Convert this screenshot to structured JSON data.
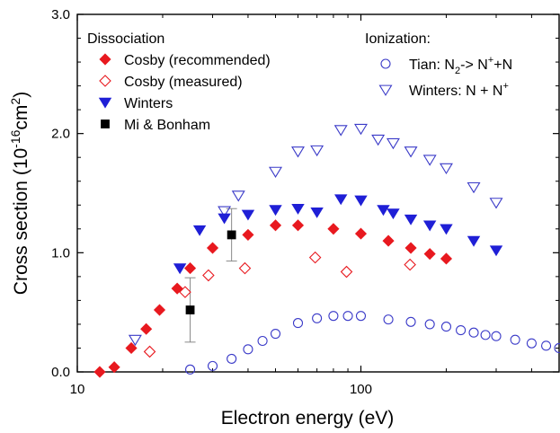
{
  "colors": {
    "filled_red": "#e8191f",
    "hollow_red": "#e8191f",
    "filled_blue": "#1f1fd6",
    "hollow_blue": "#3a3ac8",
    "black": "#000000",
    "grey": "#888888"
  },
  "chart_data": {
    "type": "scatter",
    "xscale": "log",
    "xlim": [
      10,
      500
    ],
    "ylim": [
      0.0,
      3.0
    ],
    "x_ticks": [
      10,
      100
    ],
    "x_tick_labels": [
      "10",
      "100"
    ],
    "y_ticks": [
      0.0,
      1.0,
      2.0,
      3.0
    ],
    "y_tick_labels": [
      "0.0",
      "1.0",
      "2.0",
      "3.0"
    ],
    "xlabel": "Electron energy (eV)",
    "ylabel": {
      "base": "Cross section (10",
      "sup1": "-16",
      "mid": "cm",
      "sup2": "2",
      "end": ")"
    },
    "legend_dissociation_title": "Dissociation",
    "legend_ionization_title": "Ionization:",
    "series": [
      {
        "name": "Cosby (recommended)",
        "group": "dissociation",
        "marker": "diamond",
        "filled": true,
        "color": "#e8191f",
        "x": [
          12,
          13.5,
          15.5,
          17.5,
          19.5,
          22.5,
          25,
          30,
          40,
          50,
          60,
          80,
          100,
          125,
          150,
          175,
          200
        ],
        "y": [
          0.0,
          0.04,
          0.2,
          0.36,
          0.52,
          0.7,
          0.87,
          1.04,
          1.15,
          1.23,
          1.23,
          1.2,
          1.16,
          1.1,
          1.04,
          0.99,
          0.95
        ]
      },
      {
        "name": "Cosby (measured)",
        "group": "dissociation",
        "marker": "diamond",
        "filled": false,
        "color": "#e8191f",
        "x": [
          18,
          24,
          29,
          39,
          69,
          89,
          149
        ],
        "y": [
          0.17,
          0.67,
          0.81,
          0.87,
          0.96,
          0.84,
          0.9
        ]
      },
      {
        "name": "Winters",
        "group": "dissociation",
        "marker": "triangle-down",
        "filled": true,
        "color": "#1f1fd6",
        "x": [
          23,
          27,
          33,
          40,
          50,
          60,
          70,
          85,
          100,
          120,
          130,
          150,
          175,
          200,
          250,
          300
        ],
        "y": [
          0.87,
          1.19,
          1.29,
          1.32,
          1.36,
          1.37,
          1.34,
          1.45,
          1.44,
          1.36,
          1.33,
          1.28,
          1.23,
          1.2,
          1.1,
          1.02
        ]
      },
      {
        "name": "Mi & Bonham",
        "group": "dissociation",
        "marker": "square",
        "filled": true,
        "color": "#000000",
        "x": [
          25,
          35
        ],
        "y": [
          0.52,
          1.15
        ],
        "err": [
          0.27,
          0.22
        ]
      },
      {
        "name": "Tian: N2-> N+ +N",
        "label_parts": {
          "a": "Tian: N",
          "sub": "2",
          "b": "-> N",
          "sup": "+",
          "c": "+N"
        },
        "group": "ionization",
        "marker": "circle",
        "filled": false,
        "color": "#3a3ac8",
        "x": [
          25,
          30,
          35,
          40,
          45,
          50,
          60,
          70,
          80,
          90,
          100,
          125,
          150,
          175,
          200,
          225,
          250,
          275,
          300,
          350,
          400,
          450,
          500
        ],
        "y": [
          0.02,
          0.05,
          0.11,
          0.19,
          0.26,
          0.32,
          0.41,
          0.45,
          0.47,
          0.47,
          0.47,
          0.44,
          0.42,
          0.4,
          0.38,
          0.35,
          0.33,
          0.31,
          0.3,
          0.27,
          0.24,
          0.22,
          0.2
        ]
      },
      {
        "name": "Winters: N + N+",
        "label_parts": {
          "a": "Winters: N + N",
          "sup": "+"
        },
        "group": "ionization",
        "marker": "triangle-down",
        "filled": false,
        "color": "#3a3ac8",
        "x": [
          16,
          33,
          37,
          50,
          60,
          70,
          85,
          100,
          115,
          130,
          150,
          175,
          200,
          250,
          300
        ],
        "y": [
          0.27,
          1.35,
          1.48,
          1.68,
          1.85,
          1.86,
          2.03,
          2.04,
          1.95,
          1.92,
          1.85,
          1.78,
          1.71,
          1.55,
          1.42
        ]
      }
    ]
  }
}
